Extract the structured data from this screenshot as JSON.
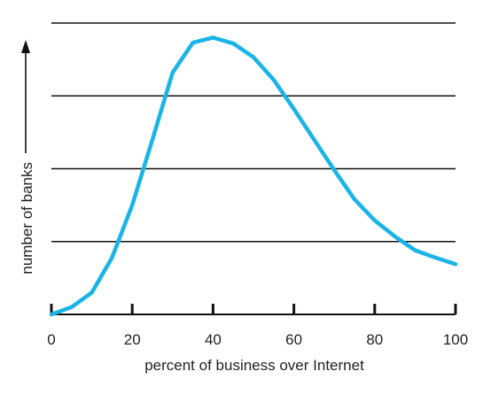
{
  "chart_data": {
    "type": "line",
    "xlabel": "percent of business over Internet",
    "ylabel": "number of banks",
    "xlim": [
      0,
      100
    ],
    "ylim": [
      0,
      4
    ],
    "x_ticks": [
      0,
      20,
      40,
      60,
      80,
      100
    ],
    "x_tick_labels": [
      "0",
      "20",
      "40",
      "60",
      "80",
      "100"
    ],
    "y_gridlines": [
      1,
      2,
      3,
      4
    ],
    "grid": "horizontal",
    "y_arrow": true,
    "series": [
      {
        "color": "#1ab4e8",
        "x": [
          0,
          5,
          10,
          15,
          20,
          25,
          30,
          35,
          40,
          45,
          50,
          55,
          60,
          65,
          70,
          75,
          80,
          85,
          90,
          95,
          100
        ],
        "y": [
          0,
          0.1,
          0.3,
          0.78,
          1.5,
          2.4,
          3.32,
          3.73,
          3.8,
          3.72,
          3.53,
          3.22,
          2.82,
          2.4,
          1.98,
          1.58,
          1.29,
          1.07,
          0.88,
          0.78,
          0.69
        ]
      }
    ]
  }
}
